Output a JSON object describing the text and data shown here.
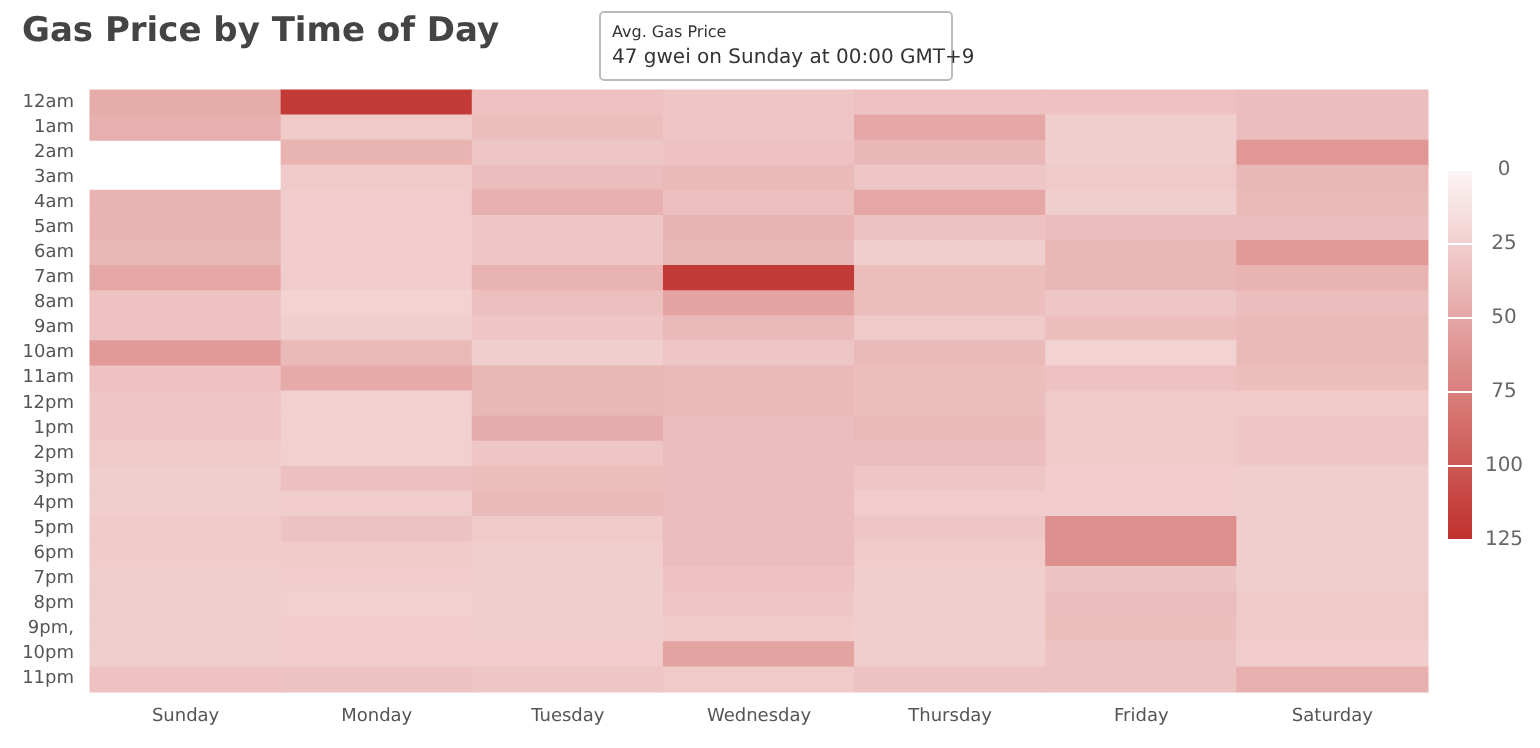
{
  "chart_data": {
    "type": "heatmap",
    "title": "Gas Price by Time of Day",
    "categories": [
      "Sunday",
      "Monday",
      "Tuesday",
      "Wednesday",
      "Thursday",
      "Friday",
      "Saturday"
    ],
    "y_categories": [
      "12am",
      "1am",
      "2am",
      "3am",
      "4am",
      "5am",
      "6am",
      "7am",
      "8am",
      "9am",
      "10am",
      "11am",
      "12pm",
      "1pm",
      "2pm",
      "3pm",
      "4pm",
      "5pm",
      "6pm",
      "7pm",
      "8pm",
      "9pm,",
      "10pm",
      "11pm"
    ],
    "cells": [
      [
        47,
        118,
        33,
        30,
        33,
        33,
        36
      ],
      [
        45,
        28,
        35,
        30,
        50,
        25,
        36
      ],
      [
        null,
        42,
        30,
        33,
        40,
        25,
        60
      ],
      [
        null,
        28,
        36,
        38,
        30,
        28,
        40
      ],
      [
        42,
        26,
        45,
        34,
        50,
        25,
        38
      ],
      [
        42,
        26,
        30,
        42,
        32,
        36,
        36
      ],
      [
        40,
        26,
        30,
        40,
        25,
        40,
        58
      ],
      [
        50,
        26,
        42,
        118,
        35,
        40,
        42
      ],
      [
        33,
        22,
        34,
        52,
        35,
        30,
        36
      ],
      [
        33,
        25,
        30,
        38,
        28,
        35,
        38
      ],
      [
        58,
        38,
        25,
        30,
        38,
        22,
        38
      ],
      [
        33,
        48,
        40,
        38,
        35,
        33,
        35
      ],
      [
        30,
        24,
        40,
        38,
        35,
        28,
        27
      ],
      [
        30,
        24,
        46,
        36,
        38,
        28,
        30
      ],
      [
        28,
        24,
        30,
        36,
        36,
        28,
        30
      ],
      [
        25,
        34,
        35,
        36,
        30,
        26,
        25
      ],
      [
        25,
        26,
        38,
        36,
        26,
        26,
        25
      ],
      [
        27,
        32,
        28,
        36,
        30,
        65,
        25
      ],
      [
        27,
        28,
        25,
        36,
        27,
        65,
        25
      ],
      [
        25,
        26,
        25,
        33,
        25,
        32,
        25
      ],
      [
        25,
        24,
        25,
        30,
        25,
        36,
        28
      ],
      [
        25,
        26,
        25,
        27,
        25,
        35,
        28
      ],
      [
        25,
        26,
        26,
        52,
        25,
        32,
        26
      ],
      [
        33,
        32,
        30,
        28,
        32,
        32,
        45
      ]
    ],
    "clim": [
      0,
      125
    ],
    "cticks": [
      0,
      25,
      50,
      75,
      100,
      125
    ],
    "annotations": [
      "Avg. Gas Price",
      "47 gwei on Sunday at 00:00 GMT+9"
    ]
  }
}
